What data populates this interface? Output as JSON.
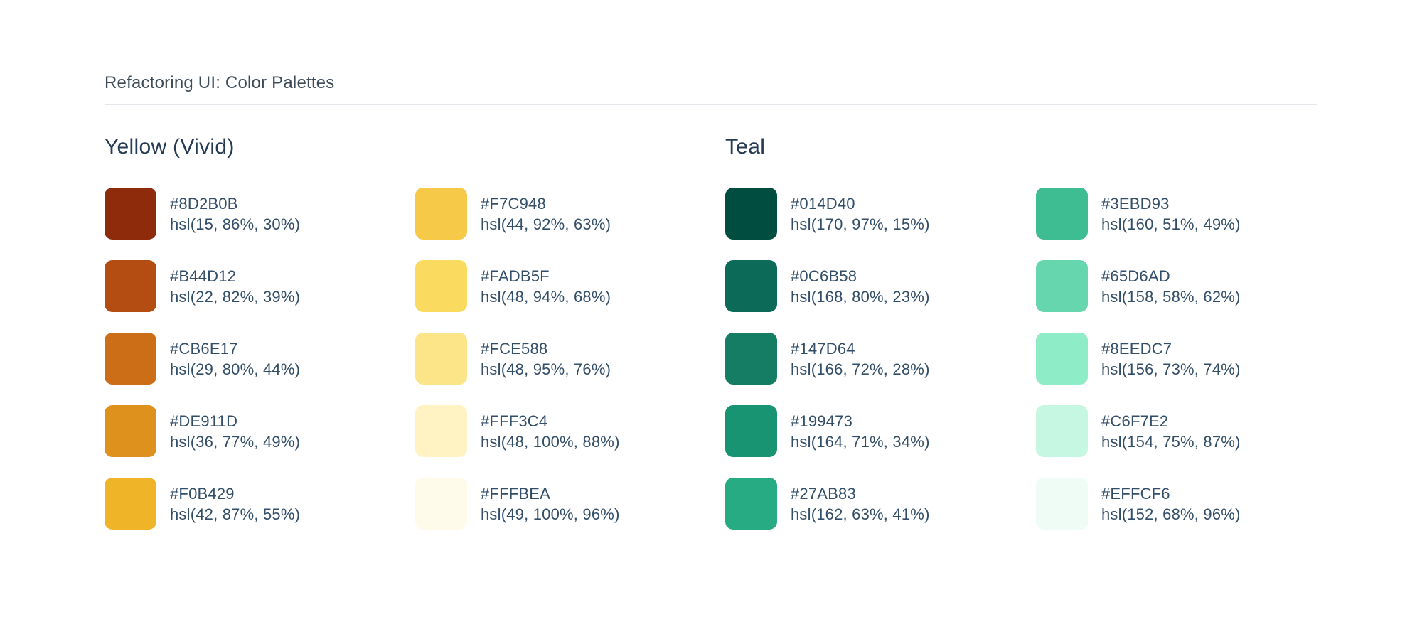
{
  "page": {
    "title": "Refactoring UI: Color Palettes"
  },
  "colors": {
    "background": "#FFFFFF",
    "title_text": "#3E4C59",
    "heading_text": "#243B53",
    "label_text": "#334E68",
    "divider": "#E4E7EB"
  },
  "palettes": [
    {
      "name": "Yellow (Vivid)",
      "swatches": [
        {
          "hex": "#8D2B0B",
          "hsl": "hsl(15, 86%, 30%)"
        },
        {
          "hex": "#B44D12",
          "hsl": "hsl(22, 82%, 39%)"
        },
        {
          "hex": "#CB6E17",
          "hsl": "hsl(29, 80%, 44%)"
        },
        {
          "hex": "#DE911D",
          "hsl": "hsl(36, 77%, 49%)"
        },
        {
          "hex": "#F0B429",
          "hsl": "hsl(42, 87%, 55%)"
        },
        {
          "hex": "#F7C948",
          "hsl": "hsl(44, 92%, 63%)"
        },
        {
          "hex": "#FADB5F",
          "hsl": "hsl(48, 94%, 68%)"
        },
        {
          "hex": "#FCE588",
          "hsl": "hsl(48, 95%, 76%)"
        },
        {
          "hex": "#FFF3C4",
          "hsl": "hsl(48, 100%, 88%)"
        },
        {
          "hex": "#FFFBEA",
          "hsl": "hsl(49, 100%, 96%)"
        }
      ]
    },
    {
      "name": "Teal",
      "swatches": [
        {
          "hex": "#014D40",
          "hsl": "hsl(170, 97%, 15%)"
        },
        {
          "hex": "#0C6B58",
          "hsl": "hsl(168, 80%, 23%)"
        },
        {
          "hex": "#147D64",
          "hsl": "hsl(166, 72%, 28%)"
        },
        {
          "hex": "#199473",
          "hsl": "hsl(164, 71%, 34%)"
        },
        {
          "hex": "#27AB83",
          "hsl": "hsl(162, 63%, 41%)"
        },
        {
          "hex": "#3EBD93",
          "hsl": "hsl(160, 51%, 49%)"
        },
        {
          "hex": "#65D6AD",
          "hsl": "hsl(158, 58%, 62%)"
        },
        {
          "hex": "#8EEDC7",
          "hsl": "hsl(156, 73%, 74%)"
        },
        {
          "hex": "#C6F7E2",
          "hsl": "hsl(154, 75%, 87%)"
        },
        {
          "hex": "#EFFCF6",
          "hsl": "hsl(152, 68%, 96%)"
        }
      ]
    }
  ]
}
